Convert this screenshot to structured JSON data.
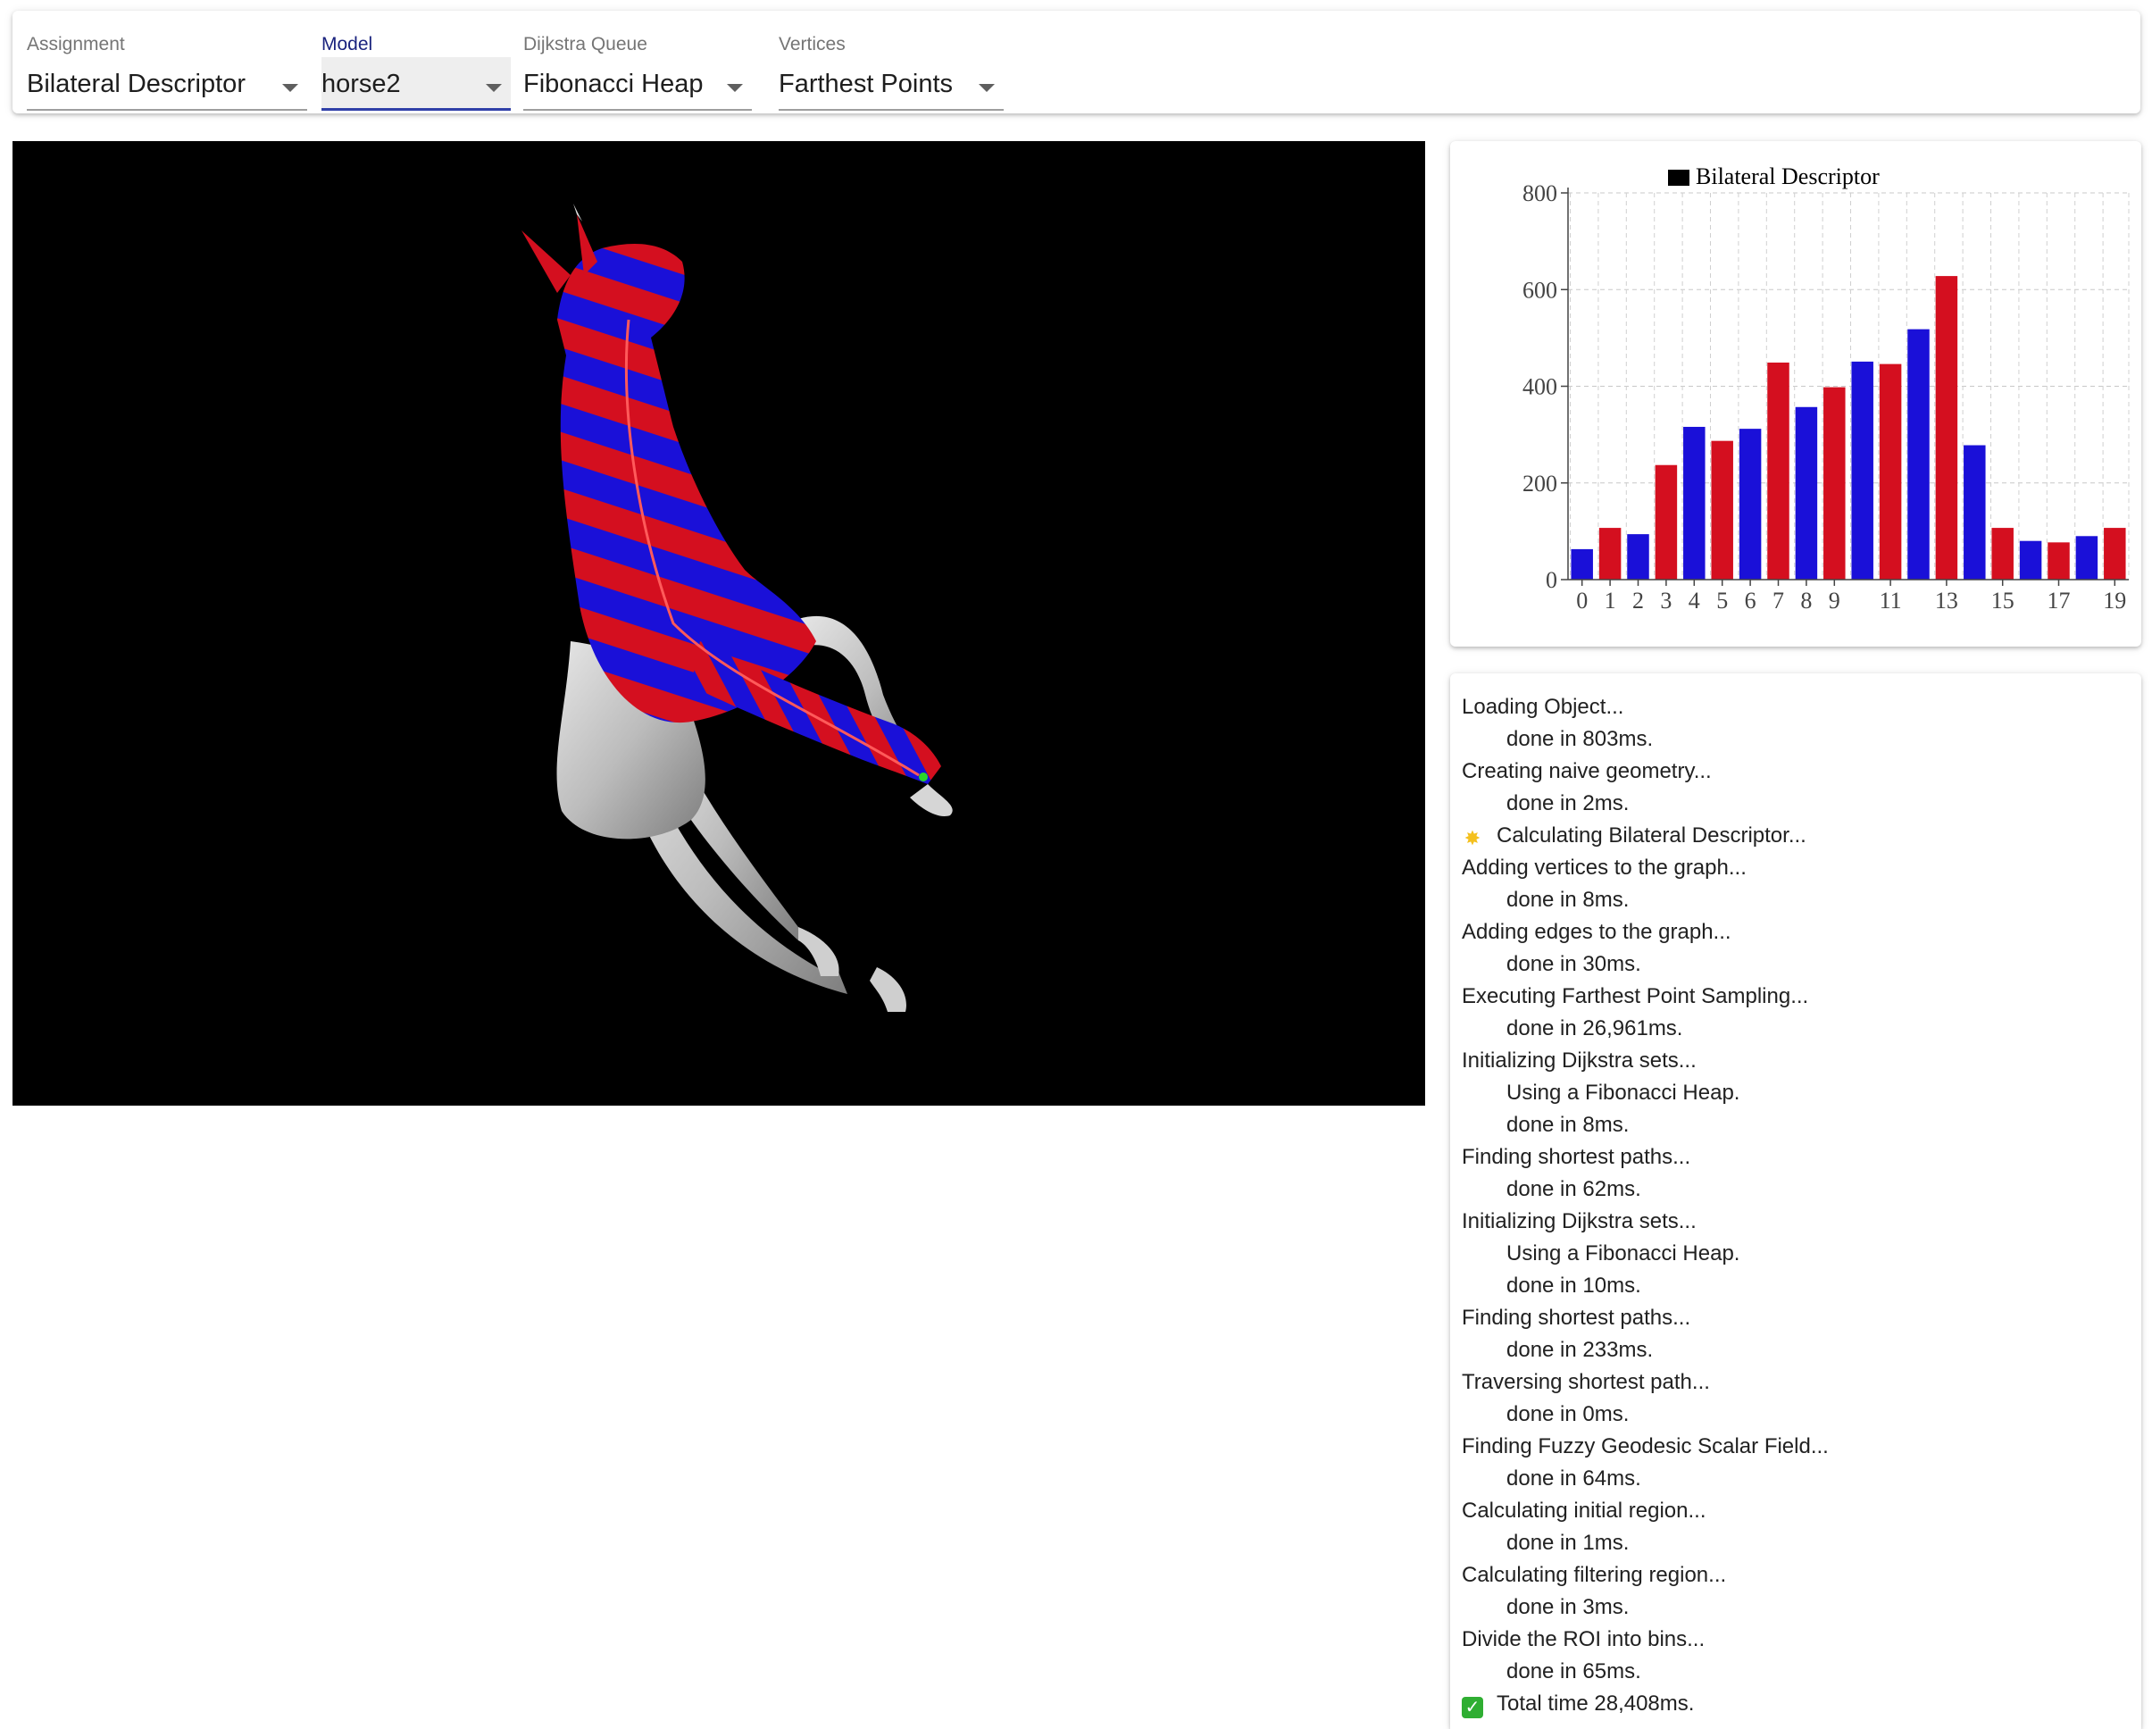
{
  "toolbar": {
    "selects": [
      {
        "label": "Assignment",
        "value": "Bilateral Descriptor"
      },
      {
        "label": "Model",
        "value": "horse2"
      },
      {
        "label": "Dijkstra Queue",
        "value": "Fibonacci Heap"
      },
      {
        "label": "Vertices",
        "value": "Farthest Points"
      }
    ]
  },
  "viewport": {
    "content": "horse2-mesh",
    "colors": {
      "background": "#000000",
      "stripe_red": "#d40f1f",
      "stripe_blue": "#1a10d8",
      "mesh": "#bdbdbd",
      "marker": "#2bd62b"
    }
  },
  "chart_data": {
    "type": "bar",
    "legend": "Bilateral Descriptor",
    "legend_color": "#000000",
    "categories": [
      0,
      1,
      2,
      3,
      4,
      5,
      6,
      7,
      8,
      9,
      10,
      11,
      12,
      13,
      14,
      15,
      16,
      17,
      18,
      19
    ],
    "tick_labels": [
      "0",
      "1",
      "2",
      "3",
      "4",
      "5",
      "6",
      "7",
      "8",
      "9",
      "11",
      "13",
      "15",
      "17",
      "19"
    ],
    "tick_positions": [
      0,
      1,
      2,
      3,
      4,
      5,
      6,
      7,
      8,
      9,
      11,
      13,
      15,
      17,
      19
    ],
    "values": [
      63,
      107,
      94,
      237,
      316,
      287,
      312,
      449,
      357,
      398,
      451,
      446,
      518,
      628,
      278,
      107,
      80,
      77,
      90,
      107
    ],
    "bar_colors": [
      "#1a10d8",
      "#d40f1f",
      "#1a10d8",
      "#d40f1f",
      "#1a10d8",
      "#d40f1f",
      "#1a10d8",
      "#d40f1f",
      "#1a10d8",
      "#d40f1f",
      "#1a10d8",
      "#d40f1f",
      "#1a10d8",
      "#d40f1f",
      "#1a10d8",
      "#d40f1f",
      "#1a10d8",
      "#d40f1f",
      "#1a10d8",
      "#d40f1f"
    ],
    "y_ticks": [
      0,
      200,
      400,
      600,
      800
    ],
    "ylim": [
      0,
      800
    ],
    "grid": true
  },
  "log": [
    {
      "text": "Loading Object...",
      "indent": false,
      "icon": ""
    },
    {
      "text": "done in 803ms.",
      "indent": true,
      "icon": ""
    },
    {
      "text": "Creating naive geometry...",
      "indent": false,
      "icon": ""
    },
    {
      "text": "done in 2ms.",
      "indent": true,
      "icon": ""
    },
    {
      "text": "Calculating Bilateral Descriptor...",
      "indent": false,
      "icon": "sparkle-icon"
    },
    {
      "text": "Adding vertices to the graph...",
      "indent": false,
      "icon": ""
    },
    {
      "text": "done in 8ms.",
      "indent": true,
      "icon": ""
    },
    {
      "text": "Adding edges to the graph...",
      "indent": false,
      "icon": ""
    },
    {
      "text": "done in 30ms.",
      "indent": true,
      "icon": ""
    },
    {
      "text": "Executing Farthest Point Sampling...",
      "indent": false,
      "icon": ""
    },
    {
      "text": "done in 26,961ms.",
      "indent": true,
      "icon": ""
    },
    {
      "text": "Initializing Dijkstra sets...",
      "indent": false,
      "icon": ""
    },
    {
      "text": "Using a Fibonacci Heap.",
      "indent": true,
      "icon": ""
    },
    {
      "text": "done in 8ms.",
      "indent": true,
      "icon": ""
    },
    {
      "text": "Finding shortest paths...",
      "indent": false,
      "icon": ""
    },
    {
      "text": "done in 62ms.",
      "indent": true,
      "icon": ""
    },
    {
      "text": "Initializing Dijkstra sets...",
      "indent": false,
      "icon": ""
    },
    {
      "text": "Using a Fibonacci Heap.",
      "indent": true,
      "icon": ""
    },
    {
      "text": "done in 10ms.",
      "indent": true,
      "icon": ""
    },
    {
      "text": "Finding shortest paths...",
      "indent": false,
      "icon": ""
    },
    {
      "text": "done in 233ms.",
      "indent": true,
      "icon": ""
    },
    {
      "text": "Traversing shortest path...",
      "indent": false,
      "icon": ""
    },
    {
      "text": "done in 0ms.",
      "indent": true,
      "icon": ""
    },
    {
      "text": "Finding Fuzzy Geodesic Scalar Field...",
      "indent": false,
      "icon": ""
    },
    {
      "text": "done in 64ms.",
      "indent": true,
      "icon": ""
    },
    {
      "text": "Calculating initial region...",
      "indent": false,
      "icon": ""
    },
    {
      "text": "done in 1ms.",
      "indent": true,
      "icon": ""
    },
    {
      "text": "Calculating filtering region...",
      "indent": false,
      "icon": ""
    },
    {
      "text": "done in 3ms.",
      "indent": true,
      "icon": ""
    },
    {
      "text": "Divide the ROI into bins...",
      "indent": false,
      "icon": ""
    },
    {
      "text": "done in 65ms.",
      "indent": true,
      "icon": ""
    },
    {
      "text": "Total time 28,408ms.",
      "indent": false,
      "icon": "check-icon"
    }
  ]
}
